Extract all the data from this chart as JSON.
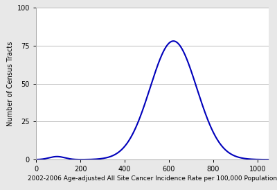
{
  "title": "",
  "xlabel": "2002-2006 Age-adjusted All Site Cancer Incidence Rate per 100,000 Population",
  "ylabel": "Number of Census Tracts",
  "xlim": [
    0,
    1050
  ],
  "ylim": [
    0,
    100
  ],
  "xticks": [
    0,
    200,
    400,
    600,
    800,
    1000
  ],
  "yticks": [
    0,
    25,
    50,
    75,
    100
  ],
  "line_color": "#0000BB",
  "line_width": 1.5,
  "background_color": "#e8e8e8",
  "axes_background": "#ffffff",
  "grid_color": "#bbbbbb",
  "grid_linewidth": 0.7,
  "main_mean": 620,
  "main_std": 105,
  "main_amplitude": 78,
  "small_mean": 95,
  "small_std": 35,
  "small_amplitude": 2.0,
  "xlabel_fontsize": 6.5,
  "ylabel_fontsize": 7.0,
  "tick_fontsize": 7.0
}
